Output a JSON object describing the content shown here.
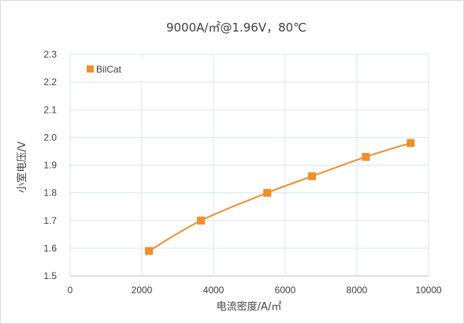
{
  "chart_data": {
    "type": "scatter",
    "title": "9000A/㎡@1.96V，80℃",
    "xlabel": "电流密度/A/㎡",
    "ylabel": "小室电压/V",
    "xlim": [
      0,
      10000
    ],
    "ylim": [
      1.5,
      2.3
    ],
    "x_ticks": [
      "0",
      "2000",
      "4000",
      "6000",
      "8000",
      "10000"
    ],
    "y_ticks": [
      "1.5",
      "1.6",
      "1.7",
      "1.8",
      "1.9",
      "2.0",
      "2.1",
      "2.2",
      "2.3"
    ],
    "grid": true,
    "legend_position": "top-left",
    "series": [
      {
        "name": "BilCat",
        "color": "#f28e2b",
        "marker": "square",
        "smooth_line": true,
        "points": [
          {
            "x": 2200,
            "y": 1.59
          },
          {
            "x": 3650,
            "y": 1.7
          },
          {
            "x": 5500,
            "y": 1.8
          },
          {
            "x": 6750,
            "y": 1.86
          },
          {
            "x": 8250,
            "y": 1.93
          },
          {
            "x": 9500,
            "y": 1.98
          }
        ]
      }
    ]
  },
  "colors": {
    "grid": "#d9e5f2",
    "axis": "#bfbfbf",
    "text": "#404040"
  }
}
